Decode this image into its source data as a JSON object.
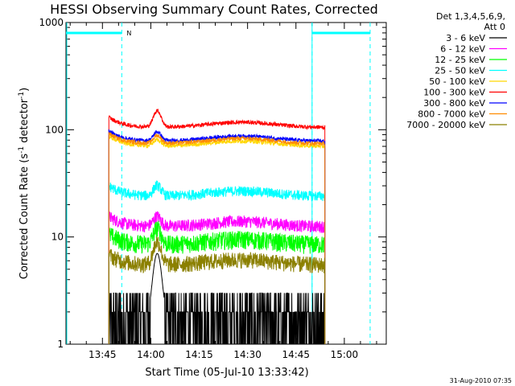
{
  "chart_data": {
    "type": "line",
    "title": "HESSI Observing Summary Count Rates, Corrected",
    "xlabel": "Start Time (05-Jul-10 13:33:42)",
    "ylabel_main": "Corrected Count Rate (s",
    "ylabel_sup1": "-1",
    "ylabel_mid": " detector",
    "ylabel_sup2": "-1",
    "ylabel_end": ")",
    "y_scale": "log",
    "ylim": [
      1,
      1000
    ],
    "y_ticks": [
      1,
      10,
      100,
      1000
    ],
    "y_tick_labels": [
      "1",
      "10",
      "100",
      "1000"
    ],
    "x_ticks_min": [
      45,
      60,
      75,
      90,
      105,
      120
    ],
    "x_tick_labels": [
      "13:45",
      "14:00",
      "14:15",
      "14:30",
      "14:45",
      "15:00"
    ],
    "x_range_min": [
      33.7,
      133.0
    ],
    "legend_header": [
      "Det 1,3,4,5,6,9,",
      "Att 0"
    ],
    "legend_position": "right",
    "footer": "31-Aug-2010 07:35",
    "flag_label": "N",
    "flag_color": "#00ffff",
    "data_start_min": 47.0,
    "data_end_min": 114.0,
    "flare_peak_min": 62.0,
    "night_intervals_min": [
      [
        51.0,
        110.0
      ],
      [
        110.0,
        128.0
      ]
    ],
    "flag_bar_intervals_min": [
      [
        33.7,
        51.0
      ],
      [
        110.0,
        128.0
      ]
    ],
    "series": [
      {
        "name": "3 - 6 keV",
        "color": "#000000",
        "base": 1.8,
        "peak": 7.0,
        "noise": 0.9
      },
      {
        "name": "6 - 12 keV",
        "color": "#ff00ff",
        "base": 12.5,
        "peak": 15.5,
        "noise": 0.06
      },
      {
        "name": "12 - 25 keV",
        "color": "#00ff00",
        "base": 8.5,
        "peak": 12.0,
        "noise": 0.09
      },
      {
        "name": "25 - 50 keV",
        "color": "#00ffff",
        "base": 24.0,
        "peak": 30.0,
        "noise": 0.05
      },
      {
        "name": "50 - 100 keV",
        "color": "#ffd700",
        "base": 70.0,
        "peak": 80.0,
        "noise": 0.02
      },
      {
        "name": "100 - 300 keV",
        "color": "#ff0000",
        "base": 105.0,
        "peak": 150.0,
        "noise": 0.02
      },
      {
        "name": "300 - 800 keV",
        "color": "#0000ff",
        "base": 78.0,
        "peak": 95.0,
        "noise": 0.02
      },
      {
        "name": "800 - 7000 keV",
        "color": "#ff8c00",
        "base": 74.0,
        "peak": 88.0,
        "noise": 0.02
      },
      {
        "name": "7000 - 20000 keV",
        "color": "#8b8000",
        "base": 5.5,
        "peak": 9.0,
        "noise": 0.08
      }
    ]
  }
}
